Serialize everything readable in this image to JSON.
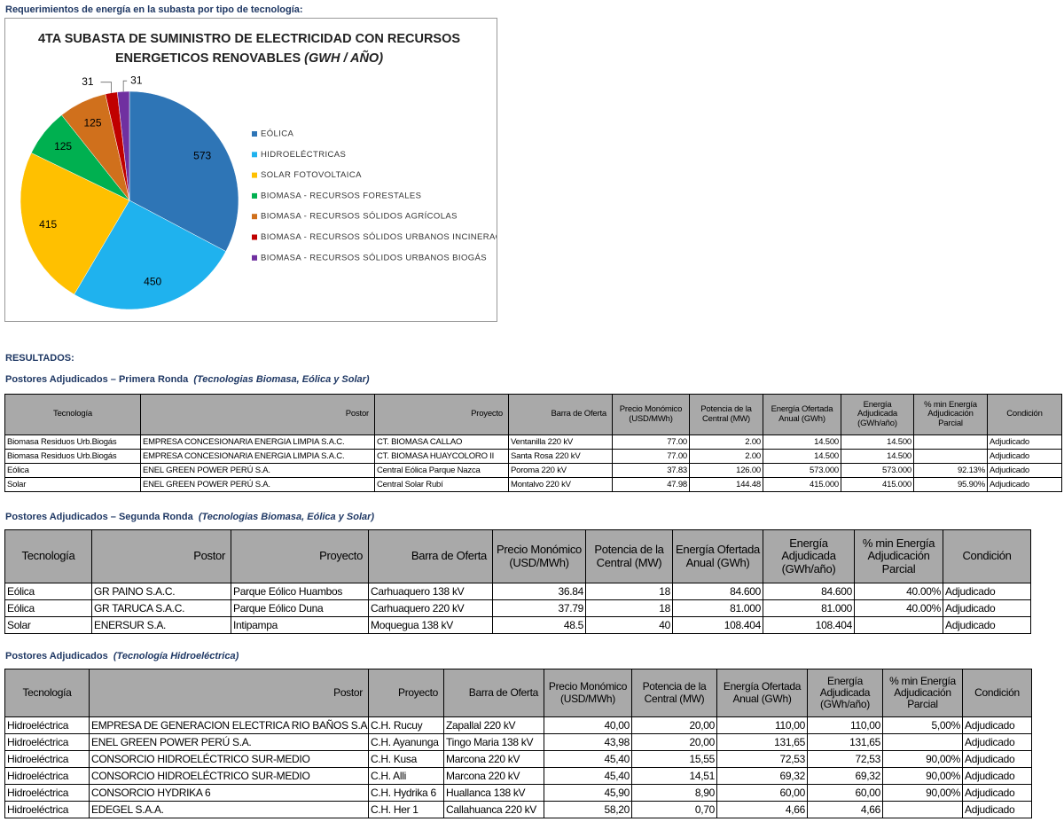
{
  "heading": "Requerimientos de energía en la subasta por tipo de tecnología:",
  "chart_data": {
    "type": "pie",
    "title": "4TA SUBASTA DE SUMINISTRO DE ELECTRICIDAD CON RECURSOS ENERGETICOS RENOVABLES",
    "subtitle": "(GWH / AÑO)",
    "categories": [
      "EÓLICA",
      "HIDROELÉCTRICAS",
      "SOLAR FOTOVOLTAICA",
      "BIOMASA - RECURSOS FORESTALES",
      "BIOMASA - RECURSOS SÓLIDOS AGRÍCOLAS",
      "BIOMASA - RECURSOS SÓLIDOS URBANOS INCINERACIÓN",
      "BIOMASA - RECURSOS SÓLIDOS URBANOS BIOGÁS"
    ],
    "values": [
      573,
      450,
      415,
      125,
      125,
      31,
      31
    ],
    "colors": [
      "#2e75b6",
      "#1fb2ee",
      "#ffc000",
      "#00b050",
      "#d0701c",
      "#c00000",
      "#7030a0"
    ],
    "legend": "right"
  },
  "results_label": "RESULTADOS:",
  "sections": [
    {
      "title": "Postores Adjudicados – Primera Ronda",
      "subtitle": "(Tecnologias Biomasa, Eólica y Solar)",
      "table": {
        "header": [
          "Tecnología",
          "Postor",
          "Proyecto",
          "Barra de Oferta",
          "Precio Monómico (USD/MWh)",
          "Potencia de la Central (MW)",
          "Energía Ofertada Anual (GWh)",
          "Energía Adjudicada (GWh/año)",
          "% min Energía Adjudicación Parcial",
          "Condición"
        ],
        "rows": [
          [
            "Biomasa Residuos Urb.Biogás",
            "EMPRESA CONCESIONARIA ENERGIA LIMPIA S.A.C.",
            "CT. BIOMASA CALLAO",
            "Ventanilla 220 kV",
            "77.00",
            "2.00",
            "14.500",
            "14.500",
            null,
            "Adjudicado"
          ],
          [
            "Biomasa Residuos Urb.Biogás",
            "EMPRESA CONCESIONARIA ENERGIA LIMPIA S.A.C.",
            "CT. BIOMASA HUAYCOLORO II",
            "Santa Rosa 220 kV",
            "77.00",
            "2.00",
            "14.500",
            "14.500",
            null,
            "Adjudicado"
          ],
          [
            "Eólica",
            "ENEL GREEN POWER PERÚ S.A.",
            "Central Eólica Parque Nazca",
            "Poroma 220 kV",
            "37.83",
            "126.00",
            "573.000",
            "573.000",
            "92.13%",
            "Adjudicado"
          ],
          [
            "Solar",
            "ENEL GREEN POWER PERÚ S.A.",
            "Central Solar Rubí",
            "Montalvo 220 kV",
            "47.98",
            "144.48",
            "415.000",
            "415.000",
            "95.90%",
            "Adjudicado"
          ]
        ]
      }
    },
    {
      "title": "Postores Adjudicados – Segunda Ronda",
      "subtitle": "(Tecnologias Biomasa, Eólica y Solar)",
      "table": {
        "header": [
          "Tecnología",
          "Postor",
          "Proyecto",
          "Barra de Oferta",
          "Precio Monómico (USD/MWh)",
          "Potencia de la Central (MW)",
          "Energía Ofertada Anual (GWh)",
          "Energía Adjudicada (GWh/año)",
          "% min Energía Adjudicación Parcial",
          "Condición"
        ],
        "rows": [
          [
            "Eólica",
            "GR PAINO S.A.C.",
            "Parque Eólico Huambos",
            "Carhuaquero 138 kV",
            "36.84",
            "18",
            "84.600",
            "84.600",
            "40.00%",
            "Adjudicado"
          ],
          [
            "Eólica",
            "GR TARUCA S.A.C.",
            "Parque Eólico Duna",
            "Carhuaquero 220 kV",
            "37.79",
            "18",
            "81.000",
            "81.000",
            "40.00%",
            "Adjudicado"
          ],
          [
            "Solar",
            "ENERSUR S.A.",
            "Intipampa",
            "Moquegua 138 kV",
            "48.5",
            "40",
            "108.404",
            "108.404",
            null,
            "Adjudicado"
          ]
        ]
      }
    },
    {
      "title": "Postores Adjudicados",
      "subtitle": "(Tecnología Hidroeléctrica)",
      "table": {
        "header": [
          "Tecnología",
          "Postor",
          "Proyecto",
          "Barra de Oferta",
          "Precio Monómico (USD/MWh)",
          "Potencia de la Central (MW)",
          "Energía Ofertada Anual (GWh)",
          "Energía Adjudicada (GWh/año)",
          "% min Energía Adjudicación Parcial",
          "Condición"
        ],
        "rows": [
          [
            "Hidroeléctrica",
            "EMPRESA DE GENERACION ELECTRICA RIO BAÑOS S.A.C.",
            "C.H. Rucuy",
            "Zapallal 220 kV",
            "40,00",
            "20,00",
            "110,00",
            "110,00",
            "5,00%",
            "Adjudicado"
          ],
          [
            "Hidroeléctrica",
            "ENEL GREEN POWER PERÚ S.A.",
            "C.H. Ayanunga",
            "Tingo Maria 138 kV",
            "43,98",
            "20,00",
            "131,65",
            "131,65",
            null,
            "Adjudicado"
          ],
          [
            "Hidroeléctrica",
            "CONSORCIO HIDROELÉCTRICO SUR-MEDIO",
            "C.H. Kusa",
            "Marcona 220 kV",
            "45,40",
            "15,55",
            "72,53",
            "72,53",
            "90,00%",
            "Adjudicado"
          ],
          [
            "Hidroeléctrica",
            "CONSORCIO HIDROELÉCTRICO SUR-MEDIO",
            "C.H. Alli",
            "Marcona 220 kV",
            "45,40",
            "14,51",
            "69,32",
            "69,32",
            "90,00%",
            "Adjudicado"
          ],
          [
            "Hidroeléctrica",
            "CONSORCIO HYDRIKA 6",
            "C.H. Hydrika 6",
            "Huallanca 138 kV",
            "45,90",
            "8,90",
            "60,00",
            "60,00",
            "90,00%",
            "Adjudicado"
          ],
          [
            "Hidroeléctrica",
            "EDEGEL S.A.A.",
            "C.H. Her 1",
            "Callahuanca 220 kV",
            "58,20",
            "0,70",
            "4,66",
            "4,66",
            null,
            "Adjudicado"
          ]
        ]
      }
    }
  ]
}
